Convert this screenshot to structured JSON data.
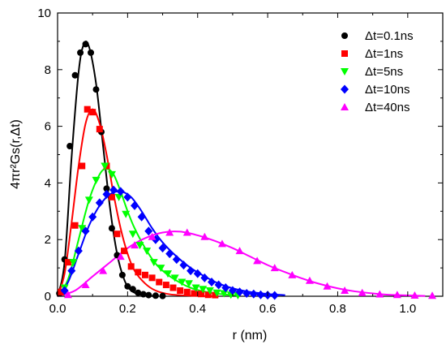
{
  "chart_data": {
    "type": "scatter",
    "xlabel": "r (nm)",
    "ylabel": "4πr²Gs(r,Δt)",
    "xlim": [
      0,
      1.1
    ],
    "ylim": [
      0,
      10
    ],
    "x_ticks": [
      "0.0",
      "0.2",
      "0.4",
      "0.6",
      "0.8",
      "1.0"
    ],
    "y_ticks": [
      "0",
      "2",
      "4",
      "6",
      "8",
      "10"
    ],
    "legend_position": "top-right",
    "grid": false,
    "series": [
      {
        "name": "Δt=0.1ns",
        "color": "#000000",
        "marker": "circle",
        "points": [
          [
            0.005,
            0.1
          ],
          [
            0.02,
            1.3
          ],
          [
            0.035,
            5.3
          ],
          [
            0.05,
            7.8
          ],
          [
            0.065,
            8.6
          ],
          [
            0.08,
            8.9
          ],
          [
            0.095,
            8.6
          ],
          [
            0.11,
            7.3
          ],
          [
            0.125,
            5.8
          ],
          [
            0.14,
            3.8
          ],
          [
            0.155,
            2.4
          ],
          [
            0.17,
            1.45
          ],
          [
            0.185,
            0.75
          ],
          [
            0.2,
            0.35
          ],
          [
            0.215,
            0.25
          ],
          [
            0.23,
            0.12
          ],
          [
            0.245,
            0.07
          ],
          [
            0.26,
            0.04
          ],
          [
            0.28,
            0.02
          ],
          [
            0.3,
            0.01
          ]
        ],
        "fit": [
          [
            0.0,
            0
          ],
          [
            0.02,
            1.2
          ],
          [
            0.04,
            4.9
          ],
          [
            0.06,
            7.9
          ],
          [
            0.075,
            8.9
          ],
          [
            0.09,
            8.8
          ],
          [
            0.11,
            7.5
          ],
          [
            0.13,
            5.3
          ],
          [
            0.15,
            3.1
          ],
          [
            0.17,
            1.5
          ],
          [
            0.19,
            0.6
          ],
          [
            0.21,
            0.2
          ],
          [
            0.24,
            0.05
          ],
          [
            0.28,
            0.0
          ]
        ]
      },
      {
        "name": "Δt=1ns",
        "color": "#ff0000",
        "marker": "square",
        "points": [
          [
            0.01,
            0.15
          ],
          [
            0.03,
            1.2
          ],
          [
            0.05,
            2.5
          ],
          [
            0.07,
            4.6
          ],
          [
            0.085,
            6.6
          ],
          [
            0.1,
            6.5
          ],
          [
            0.12,
            5.9
          ],
          [
            0.14,
            4.6
          ],
          [
            0.155,
            3.5
          ],
          [
            0.17,
            2.2
          ],
          [
            0.19,
            1.6
          ],
          [
            0.21,
            1.05
          ],
          [
            0.23,
            0.85
          ],
          [
            0.25,
            0.75
          ],
          [
            0.27,
            0.65
          ],
          [
            0.29,
            0.5
          ],
          [
            0.31,
            0.4
          ],
          [
            0.33,
            0.3
          ],
          [
            0.35,
            0.2
          ],
          [
            0.37,
            0.15
          ],
          [
            0.39,
            0.1
          ],
          [
            0.41,
            0.08
          ],
          [
            0.43,
            0.05
          ],
          [
            0.45,
            0.04
          ]
        ],
        "fit": [
          [
            0.0,
            0
          ],
          [
            0.02,
            0.8
          ],
          [
            0.04,
            2.6
          ],
          [
            0.06,
            4.6
          ],
          [
            0.08,
            6.1
          ],
          [
            0.1,
            6.6
          ],
          [
            0.12,
            6.1
          ],
          [
            0.14,
            5.0
          ],
          [
            0.16,
            3.6
          ],
          [
            0.18,
            2.4
          ],
          [
            0.2,
            1.5
          ],
          [
            0.22,
            0.9
          ],
          [
            0.25,
            0.45
          ],
          [
            0.28,
            0.2
          ],
          [
            0.32,
            0.07
          ],
          [
            0.38,
            0.02
          ],
          [
            0.45,
            0.0
          ]
        ]
      },
      {
        "name": "Δt=5ns",
        "color": "#00ff00",
        "marker": "triangle-down",
        "points": [
          [
            0.02,
            0.3
          ],
          [
            0.045,
            1.2
          ],
          [
            0.07,
            2.4
          ],
          [
            0.09,
            3.4
          ],
          [
            0.11,
            4.1
          ],
          [
            0.135,
            4.6
          ],
          [
            0.155,
            4.3
          ],
          [
            0.175,
            3.5
          ],
          [
            0.195,
            2.9
          ],
          [
            0.215,
            2.2
          ],
          [
            0.235,
            1.8
          ],
          [
            0.255,
            1.6
          ],
          [
            0.275,
            1.2
          ],
          [
            0.295,
            1.0
          ],
          [
            0.315,
            0.8
          ],
          [
            0.335,
            0.65
          ],
          [
            0.355,
            0.5
          ],
          [
            0.375,
            0.45
          ],
          [
            0.395,
            0.3
          ],
          [
            0.415,
            0.25
          ],
          [
            0.435,
            0.2
          ],
          [
            0.455,
            0.12
          ],
          [
            0.475,
            0.1
          ],
          [
            0.495,
            0.05
          ],
          [
            0.515,
            0.03
          ]
        ],
        "fit": [
          [
            0.0,
            0
          ],
          [
            0.03,
            0.6
          ],
          [
            0.06,
            2.0
          ],
          [
            0.09,
            3.4
          ],
          [
            0.12,
            4.3
          ],
          [
            0.14,
            4.5
          ],
          [
            0.16,
            4.3
          ],
          [
            0.18,
            3.7
          ],
          [
            0.2,
            3.0
          ],
          [
            0.22,
            2.4
          ],
          [
            0.25,
            1.7
          ],
          [
            0.28,
            1.15
          ],
          [
            0.31,
            0.8
          ],
          [
            0.34,
            0.55
          ],
          [
            0.37,
            0.35
          ],
          [
            0.4,
            0.22
          ],
          [
            0.44,
            0.12
          ],
          [
            0.48,
            0.06
          ],
          [
            0.52,
            0.03
          ]
        ]
      },
      {
        "name": "Δt=10ns",
        "color": "#0000ff",
        "marker": "diamond",
        "points": [
          [
            0.02,
            0.2
          ],
          [
            0.04,
            0.9
          ],
          [
            0.06,
            1.6
          ],
          [
            0.08,
            2.3
          ],
          [
            0.1,
            2.8
          ],
          [
            0.12,
            3.3
          ],
          [
            0.14,
            3.6
          ],
          [
            0.16,
            3.75
          ],
          [
            0.18,
            3.7
          ],
          [
            0.2,
            3.5
          ],
          [
            0.22,
            3.2
          ],
          [
            0.24,
            2.8
          ],
          [
            0.26,
            2.3
          ],
          [
            0.28,
            2.0
          ],
          [
            0.3,
            1.7
          ],
          [
            0.32,
            1.5
          ],
          [
            0.34,
            1.3
          ],
          [
            0.36,
            1.1
          ],
          [
            0.38,
            0.9
          ],
          [
            0.4,
            0.8
          ],
          [
            0.42,
            0.65
          ],
          [
            0.44,
            0.5
          ],
          [
            0.46,
            0.4
          ],
          [
            0.48,
            0.3
          ],
          [
            0.5,
            0.2
          ],
          [
            0.52,
            0.15
          ],
          [
            0.54,
            0.1
          ],
          [
            0.56,
            0.08
          ],
          [
            0.58,
            0.05
          ],
          [
            0.6,
            0.04
          ],
          [
            0.62,
            0.03
          ]
        ],
        "fit": [
          [
            0.0,
            0
          ],
          [
            0.03,
            0.5
          ],
          [
            0.06,
            1.5
          ],
          [
            0.09,
            2.5
          ],
          [
            0.12,
            3.2
          ],
          [
            0.15,
            3.6
          ],
          [
            0.18,
            3.7
          ],
          [
            0.21,
            3.5
          ],
          [
            0.24,
            3.0
          ],
          [
            0.27,
            2.4
          ],
          [
            0.3,
            1.9
          ],
          [
            0.34,
            1.4
          ],
          [
            0.38,
            1.0
          ],
          [
            0.42,
            0.7
          ],
          [
            0.46,
            0.45
          ],
          [
            0.5,
            0.28
          ],
          [
            0.55,
            0.15
          ],
          [
            0.6,
            0.08
          ],
          [
            0.65,
            0.04
          ]
        ]
      },
      {
        "name": "Δt=40ns",
        "color": "#ff00ff",
        "marker": "triangle-up",
        "points": [
          [
            0.03,
            0.05
          ],
          [
            0.08,
            0.4
          ],
          [
            0.13,
            0.9
          ],
          [
            0.18,
            1.4
          ],
          [
            0.22,
            1.8
          ],
          [
            0.27,
            2.1
          ],
          [
            0.32,
            2.25
          ],
          [
            0.37,
            2.25
          ],
          [
            0.42,
            2.1
          ],
          [
            0.47,
            1.85
          ],
          [
            0.52,
            1.6
          ],
          [
            0.57,
            1.25
          ],
          [
            0.62,
            1.0
          ],
          [
            0.67,
            0.75
          ],
          [
            0.72,
            0.55
          ],
          [
            0.77,
            0.35
          ],
          [
            0.82,
            0.2
          ],
          [
            0.87,
            0.12
          ],
          [
            0.92,
            0.07
          ],
          [
            0.97,
            0.05
          ],
          [
            1.02,
            0.03
          ],
          [
            1.07,
            0.02
          ]
        ],
        "fit": [
          [
            0.0,
            0
          ],
          [
            0.05,
            0.2
          ],
          [
            0.1,
            0.7
          ],
          [
            0.15,
            1.2
          ],
          [
            0.2,
            1.7
          ],
          [
            0.25,
            2.05
          ],
          [
            0.3,
            2.25
          ],
          [
            0.35,
            2.28
          ],
          [
            0.4,
            2.15
          ],
          [
            0.45,
            1.95
          ],
          [
            0.5,
            1.7
          ],
          [
            0.55,
            1.4
          ],
          [
            0.6,
            1.1
          ],
          [
            0.65,
            0.85
          ],
          [
            0.7,
            0.62
          ],
          [
            0.75,
            0.43
          ],
          [
            0.8,
            0.28
          ],
          [
            0.85,
            0.17
          ],
          [
            0.9,
            0.1
          ],
          [
            0.95,
            0.05
          ],
          [
            1.0,
            0.03
          ],
          [
            1.05,
            0.01
          ]
        ]
      }
    ]
  }
}
